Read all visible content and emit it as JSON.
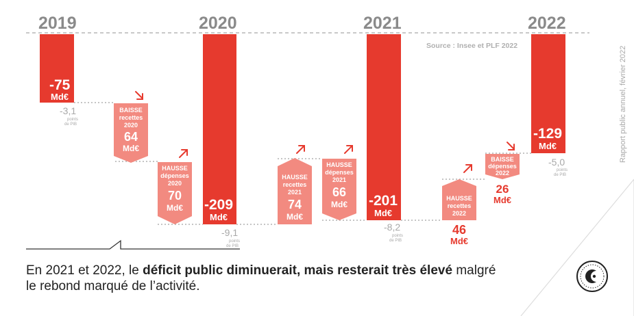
{
  "chart_data": {
    "type": "waterfall",
    "unit": "Md€",
    "years": [
      "2019",
      "2020",
      "2021",
      "2022"
    ],
    "source": "Source : Insee et PLF 2022",
    "side_note": "Rapport public annuel, février 2022",
    "deficits": [
      {
        "year": "2019",
        "value_label": "-75",
        "unit": "Md€",
        "pib_value": "-3,1",
        "pib_unit1": "points",
        "pib_unit2": "de PIB"
      },
      {
        "year": "2020",
        "value_label": "-209",
        "unit": "Md€",
        "pib_value": "-9,1",
        "pib_unit1": "points",
        "pib_unit2": "de PIB"
      },
      {
        "year": "2021",
        "value_label": "-201",
        "unit": "Md€",
        "pib_value": "-8,2",
        "pib_unit1": "points",
        "pib_unit2": "de PIB"
      },
      {
        "year": "2022",
        "value_label": "-129",
        "unit": "Md€",
        "pib_value": "-5,0",
        "pib_unit1": "points",
        "pib_unit2": "de PIB"
      }
    ],
    "changes": [
      {
        "l1": "BAISSE",
        "l2": "recettes",
        "l3": "2020",
        "value": "64",
        "unit": "Md€"
      },
      {
        "l1": "HAUSSE",
        "l2": "dépenses",
        "l3": "2020",
        "value": "70",
        "unit": "Md€"
      },
      {
        "l1": "HAUSSE",
        "l2": "recettes",
        "l3": "2021",
        "value": "74",
        "unit": "Md€"
      },
      {
        "l1": "HAUSSE",
        "l2": "dépenses",
        "l3": "2021",
        "value": "66",
        "unit": "Md€"
      },
      {
        "l1": "HAUSSE",
        "l2": "recettes",
        "l3": "2022",
        "value": "46",
        "unit": "Md€"
      },
      {
        "l1": "BAISSE",
        "l2": "dépenses",
        "l3": "2022",
        "value": "26",
        "unit": "Md€"
      }
    ]
  },
  "caption": {
    "part1": "En 2021 et 2022, le ",
    "bold1": "déficit public diminuerait, mais resterait très élevé",
    "part2": " malgré le rebond marqué de l’activité."
  },
  "colors": {
    "bar": "#e63a2e",
    "change": "#f28a80",
    "gray": "#a8a8a8"
  }
}
